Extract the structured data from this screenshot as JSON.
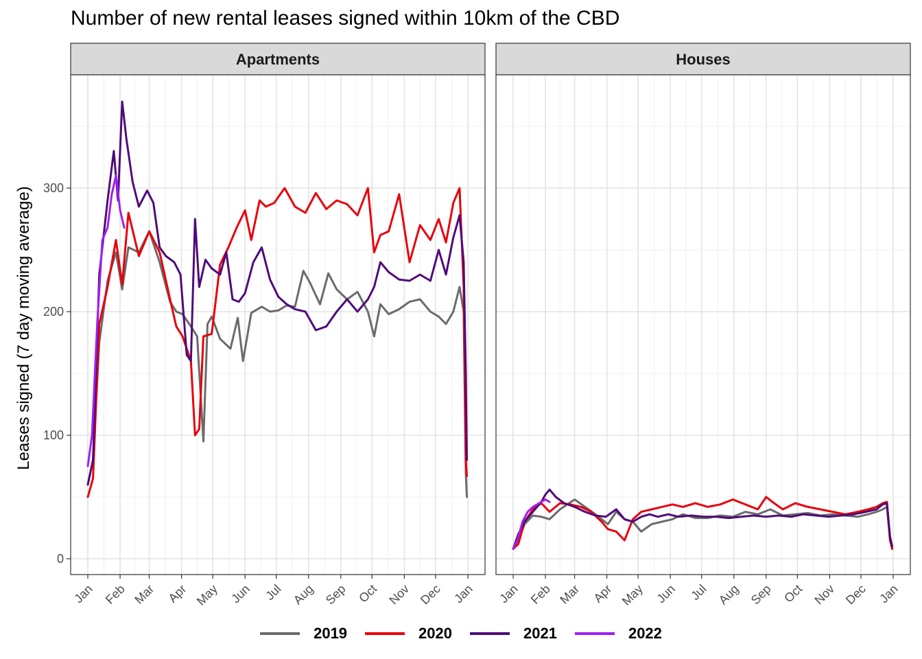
{
  "chart_data": {
    "type": "line",
    "title": "Number of new rental leases signed within 10km of the CBD",
    "xlabel": "",
    "ylabel": "Leases signed (7 day moving average)",
    "ylim": [
      0,
      380
    ],
    "y_ticks": [
      0,
      100,
      200,
      300
    ],
    "x_domain_days": [
      1,
      366
    ],
    "x_tick_labels": [
      "Jan",
      "Feb",
      "Mar",
      "Apr",
      "May",
      "Jun",
      "Jul",
      "Aug",
      "Sep",
      "Oct",
      "Nov",
      "Dec",
      "Jan"
    ],
    "x_tick_days": [
      1,
      32,
      60,
      91,
      121,
      152,
      182,
      213,
      244,
      274,
      305,
      335,
      366
    ],
    "grid": true,
    "legend_position": "bottom",
    "series_colors": {
      "2019": "#6b6b6b",
      "2020": "#e8000b",
      "2021": "#4e0b7a",
      "2022": "#a020f0"
    },
    "panels": [
      {
        "title": "Apartments",
        "series": [
          {
            "name": "2019",
            "x": [
              1,
              6,
              12,
              20,
              28,
              34,
              40,
              50,
              60,
              70,
              80,
              86,
              92,
              100,
              106,
              112,
              116,
              120,
              128,
              138,
              145,
              150,
              158,
              168,
              176,
              184,
              192,
              200,
              208,
              214,
              224,
              232,
              240,
              250,
              260,
              270,
              276,
              282,
              290,
              300,
              310,
              320,
              330,
              338,
              345,
              352,
              358,
              362,
              364,
              365
            ],
            "y": [
              60,
              80,
              175,
              225,
              248,
              218,
              252,
              248,
              265,
              240,
              208,
              200,
              198,
              188,
              180,
              95,
              190,
              196,
              178,
              170,
              195,
              160,
              199,
              204,
              200,
              201,
              205,
              204,
              233,
              224,
              206,
              231,
              218,
              210,
              216,
              200,
              180,
              206,
              198,
              202,
              208,
              210,
              200,
              196,
              190,
              200,
              220,
              200,
              70,
              50
            ]
          },
          {
            "name": "2020",
            "x": [
              1,
              6,
              12,
              20,
              28,
              34,
              40,
              50,
              60,
              70,
              80,
              86,
              92,
              100,
              104,
              108,
              112,
              120,
              128,
              136,
              144,
              152,
              158,
              166,
              172,
              180,
              190,
              200,
              210,
              220,
              230,
              240,
              250,
              260,
              270,
              276,
              282,
              290,
              300,
              310,
              320,
              330,
              338,
              345,
              352,
              358,
              362,
              364,
              365
            ],
            "y": [
              50,
              65,
              190,
              220,
              258,
              222,
              280,
              245,
              265,
              248,
              210,
              188,
              180,
              160,
              100,
              105,
              180,
              182,
              238,
              252,
              268,
              282,
              258,
              290,
              285,
              288,
              300,
              285,
              280,
              296,
              283,
              290,
              287,
              278,
              300,
              248,
              262,
              265,
              295,
              240,
              270,
              258,
              275,
              256,
              288,
              300,
              220,
              80,
              67
            ]
          },
          {
            "name": "2021",
            "x": [
              1,
              6,
              12,
              20,
              26,
              30,
              34,
              38,
              44,
              50,
              58,
              64,
              70,
              76,
              84,
              90,
              96,
              100,
              104,
              108,
              114,
              120,
              128,
              134,
              140,
              146,
              152,
              160,
              168,
              176,
              184,
              192,
              200,
              210,
              220,
              230,
              240,
              250,
              260,
              270,
              276,
              282,
              290,
              300,
              310,
              320,
              330,
              338,
              345,
              352,
              358,
              362,
              364,
              365
            ],
            "y": [
              60,
              80,
              230,
              290,
              330,
              290,
              370,
              340,
              305,
              285,
              298,
              288,
              252,
              245,
              240,
              230,
              165,
              160,
              275,
              220,
              242,
              235,
              230,
              248,
              210,
              208,
              215,
              240,
              252,
              226,
              212,
              206,
              202,
              200,
              185,
              188,
              200,
              210,
              200,
              210,
              220,
              240,
              232,
              226,
              225,
              230,
              225,
              250,
              230,
              260,
              278,
              240,
              150,
              80
            ]
          },
          {
            "name": "2022",
            "x": [
              1,
              5,
              10,
              15,
              20,
              24,
              28,
              32,
              36
            ],
            "y": [
              75,
              100,
              190,
              258,
              268,
              295,
              310,
              282,
              268
            ]
          }
        ]
      },
      {
        "title": "Houses",
        "series": [
          {
            "name": "2019",
            "x": [
              1,
              6,
              12,
              20,
              28,
              36,
              46,
              60,
              70,
              80,
              92,
              100,
              108,
              116,
              124,
              134,
              144,
              154,
              164,
              176,
              188,
              200,
              212,
              224,
              236,
              248,
              260,
              272,
              284,
              296,
              308,
              320,
              332,
              342,
              350,
              356,
              360,
              363,
              365
            ],
            "y": [
              8,
              15,
              28,
              35,
              34,
              32,
              40,
              48,
              42,
              36,
              28,
              38,
              32,
              30,
              22,
              28,
              30,
              32,
              36,
              33,
              33,
              35,
              34,
              38,
              36,
              40,
              35,
              36,
              37,
              35,
              36,
              35,
              34,
              36,
              38,
              40,
              42,
              15,
              9
            ]
          },
          {
            "name": "2020",
            "x": [
              1,
              6,
              12,
              20,
              28,
              36,
              46,
              56,
              66,
              76,
              86,
              92,
              100,
              108,
              116,
              124,
              134,
              144,
              154,
              164,
              176,
              188,
              200,
              212,
              224,
              236,
              244,
              250,
              260,
              272,
              284,
              296,
              308,
              320,
              332,
              342,
              350,
              356,
              360,
              363,
              365
            ],
            "y": [
              8,
              12,
              30,
              40,
              45,
              38,
              45,
              44,
              42,
              38,
              30,
              24,
              22,
              15,
              32,
              38,
              40,
              42,
              44,
              42,
              45,
              42,
              44,
              48,
              44,
              40,
              50,
              46,
              40,
              45,
              42,
              40,
              38,
              36,
              38,
              40,
              42,
              45,
              46,
              15,
              8
            ]
          },
          {
            "name": "2021",
            "x": [
              1,
              6,
              12,
              20,
              28,
              32,
              36,
              42,
              50,
              60,
              70,
              80,
              90,
              100,
              108,
              116,
              124,
              132,
              140,
              150,
              160,
              172,
              184,
              196,
              208,
              220,
              232,
              244,
              256,
              268,
              280,
              292,
              304,
              316,
              328,
              340,
              350,
              356,
              360,
              363,
              365
            ],
            "y": [
              8,
              20,
              30,
              38,
              46,
              52,
              56,
              50,
              45,
              42,
              38,
              35,
              34,
              40,
              32,
              30,
              34,
              36,
              34,
              36,
              34,
              35,
              34,
              34,
              33,
              34,
              35,
              34,
              35,
              34,
              36,
              35,
              34,
              35,
              36,
              38,
              40,
              44,
              45,
              18,
              10
            ]
          },
          {
            "name": "2022",
            "x": [
              1,
              5,
              10,
              15,
              20,
              24,
              28,
              32,
              36
            ],
            "y": [
              8,
              15,
              30,
              38,
              42,
              44,
              46,
              48,
              46
            ]
          }
        ]
      }
    ]
  }
}
